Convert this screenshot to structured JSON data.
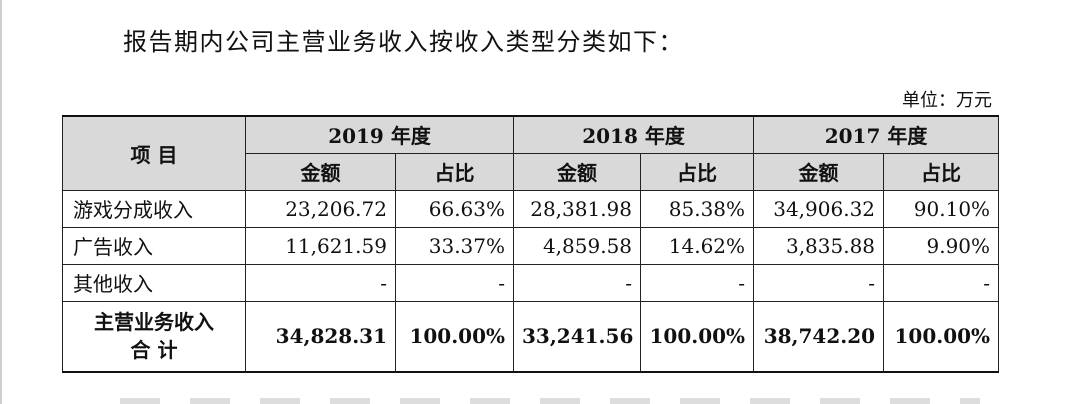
{
  "intro": "报告期内公司主营业务收入按收入类型分类如下：",
  "unit": "单位：万元",
  "table": {
    "item_header": "项 目",
    "years": [
      "2019 年度",
      "2018 年度",
      "2017 年度"
    ],
    "sub_amount": "金额",
    "sub_ratio": "占比",
    "rows": [
      {
        "label": "游戏分成收入",
        "v": [
          "23,206.72",
          "66.63%",
          "28,381.98",
          "85.38%",
          "34,906.32",
          "90.10%"
        ]
      },
      {
        "label": "广告收入",
        "v": [
          "11,621.59",
          "33.37%",
          "4,859.58",
          "14.62%",
          "3,835.88",
          "9.90%"
        ]
      },
      {
        "label": "其他收入",
        "v": [
          "-",
          "-",
          "-",
          "-",
          "-",
          "-"
        ]
      }
    ],
    "total": {
      "label_line1": "主营业务收入",
      "label_line2": "合 计",
      "v": [
        "34,828.31",
        "100.00%",
        "33,241.56",
        "100.00%",
        "38,742.20",
        "100.00%"
      ]
    }
  }
}
